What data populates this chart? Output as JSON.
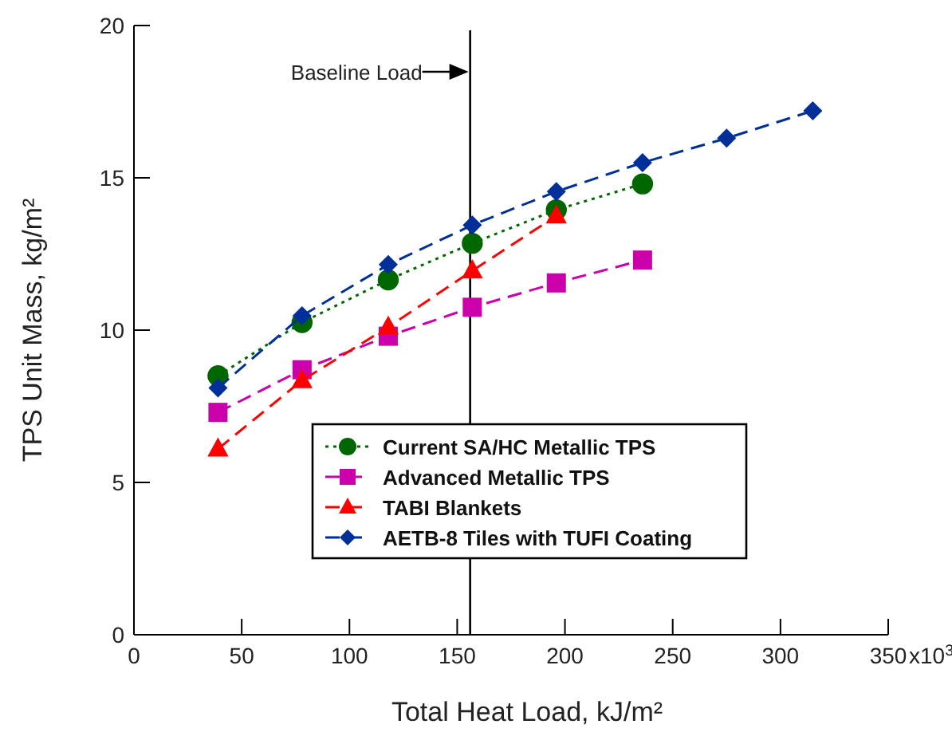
{
  "chart_data": {
    "type": "line",
    "xlabel": "Total Heat Load, kJ/m²",
    "ylabel": "TPS Unit Mass, kg/m²",
    "xlim": [
      0,
      350
    ],
    "xticks": [
      0,
      50,
      100,
      150,
      200,
      250,
      300,
      350
    ],
    "annotations": [
      "x10$^{3}$"
    ],
    "ylim": [
      0,
      20
    ],
    "yticks": [
      0,
      5,
      10,
      15,
      20
    ],
    "grid": false,
    "legend": "bottom right",
    "ref_lines": [
      {
        "axis": "x",
        "value": 156,
        "label": "Baseline Load",
        "color": "#000000"
      }
    ],
    "series": [
      {
        "name": "Current SA/HC Metallic TPS",
        "color": "#006600",
        "marker": "circle",
        "line_style": "dotted",
        "x": [
          39,
          78,
          118,
          157,
          196,
          236
        ],
        "values": [
          8.5,
          10.25,
          11.65,
          12.85,
          13.95,
          14.8
        ]
      },
      {
        "name": "Advanced Metallic TPS",
        "color": "#cc00aa",
        "marker": "square",
        "line_style": "dashed",
        "x": [
          39,
          78,
          118,
          157,
          196,
          236
        ],
        "values": [
          7.3,
          8.7,
          9.8,
          10.75,
          11.55,
          12.3
        ]
      },
      {
        "name": "TABI Blankets",
        "color": "#ff0000",
        "marker": "triangle",
        "line_style": "dashed",
        "x": [
          39,
          78,
          118,
          157,
          196
        ],
        "values": [
          6.1,
          8.35,
          10.1,
          11.95,
          13.75
        ]
      },
      {
        "name": "AETB-8 Tiles with TUFI Coating",
        "color": "#002f99",
        "marker": "diamond",
        "line_style": "dashed",
        "x": [
          39,
          78,
          118,
          157,
          196,
          236,
          275,
          315
        ],
        "values": [
          8.1,
          10.47,
          12.15,
          13.45,
          14.55,
          15.5,
          16.3,
          17.2
        ]
      }
    ]
  }
}
